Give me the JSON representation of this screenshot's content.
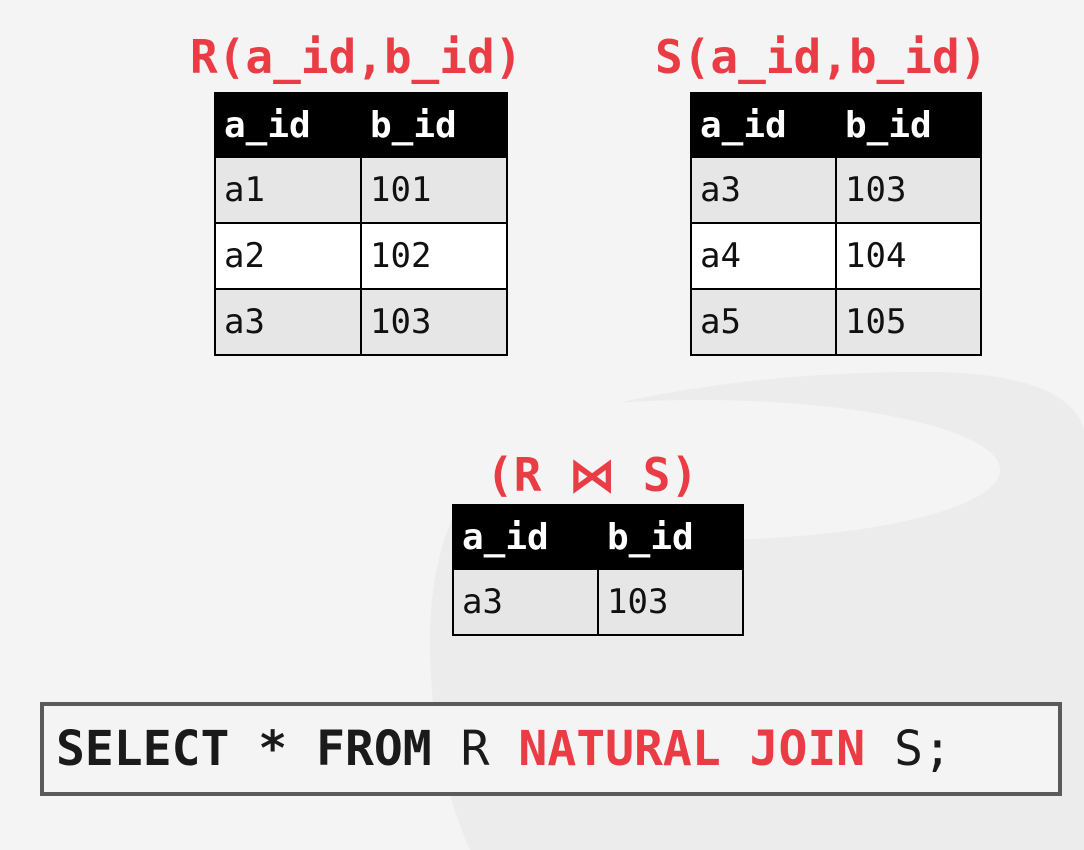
{
  "relation_r": {
    "title": "R(a_id,b_id)",
    "columns": [
      "a_id",
      "b_id"
    ],
    "rows": [
      [
        "a1",
        "101"
      ],
      [
        "a2",
        "102"
      ],
      [
        "a3",
        "103"
      ]
    ]
  },
  "relation_s": {
    "title": "S(a_id,b_id)",
    "columns": [
      "a_id",
      "b_id"
    ],
    "rows": [
      [
        "a3",
        "103"
      ],
      [
        "a4",
        "104"
      ],
      [
        "a5",
        "105"
      ]
    ]
  },
  "join_result": {
    "title": "(R ⋈ S)",
    "columns": [
      "a_id",
      "b_id"
    ],
    "rows": [
      [
        "a3",
        "103"
      ]
    ]
  },
  "sql": {
    "select": "SELECT",
    "star": "*",
    "from": "FROM",
    "left_table": "R",
    "natural_join": "NATURAL JOIN",
    "right_table": "S;"
  },
  "colors": {
    "accent": "#ea3c44",
    "header_bg": "#000000",
    "row_shaded": "#e6e6e6",
    "row_plain": "#ffffff"
  }
}
